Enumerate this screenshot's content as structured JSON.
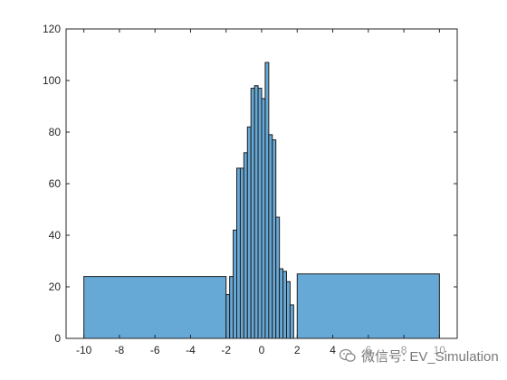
{
  "chart_data": {
    "type": "bar",
    "subtype": "histogram",
    "title": "",
    "xlabel": "",
    "ylabel": "",
    "xlim": [
      -11,
      11
    ],
    "ylim": [
      0,
      120
    ],
    "xticks": [
      -10,
      -8,
      -6,
      -4,
      -2,
      0,
      2,
      4,
      6,
      8,
      10
    ],
    "yticks": [
      0,
      20,
      40,
      60,
      80,
      100,
      120
    ],
    "bar_color": "#66a8d6",
    "edge_color": "#1f1f1f",
    "grid": false,
    "bins": [
      {
        "x0": -10,
        "x1": -2,
        "value": 24
      },
      {
        "x0": -2,
        "x1": -1.8,
        "value": 17
      },
      {
        "x0": -1.8,
        "x1": -1.6,
        "value": 24
      },
      {
        "x0": -1.6,
        "x1": -1.4,
        "value": 42
      },
      {
        "x0": -1.4,
        "x1": -1.2,
        "value": 66
      },
      {
        "x0": -1.2,
        "x1": -1.0,
        "value": 66
      },
      {
        "x0": -1.0,
        "x1": -0.8,
        "value": 72
      },
      {
        "x0": -0.8,
        "x1": -0.6,
        "value": 82
      },
      {
        "x0": -0.6,
        "x1": -0.4,
        "value": 97
      },
      {
        "x0": -0.4,
        "x1": -0.2,
        "value": 98
      },
      {
        "x0": -0.2,
        "x1": 0.0,
        "value": 97
      },
      {
        "x0": 0.0,
        "x1": 0.2,
        "value": 93
      },
      {
        "x0": 0.2,
        "x1": 0.4,
        "value": 107
      },
      {
        "x0": 0.4,
        "x1": 0.6,
        "value": 79
      },
      {
        "x0": 0.6,
        "x1": 0.8,
        "value": 77
      },
      {
        "x0": 0.8,
        "x1": 1.0,
        "value": 47
      },
      {
        "x0": 1.0,
        "x1": 1.2,
        "value": 27
      },
      {
        "x0": 1.2,
        "x1": 1.4,
        "value": 26
      },
      {
        "x0": 1.4,
        "x1": 1.6,
        "value": 22
      },
      {
        "x0": 1.6,
        "x1": 1.8,
        "value": 13
      },
      {
        "x0": 2,
        "x1": 10,
        "value": 25
      }
    ]
  },
  "watermark": {
    "text": "微信号: EV_Simulation",
    "icon": "wechat-icon"
  }
}
